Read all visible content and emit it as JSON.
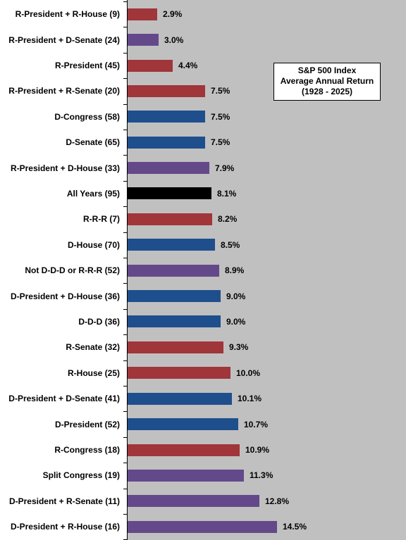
{
  "chart_data": {
    "type": "bar",
    "orientation": "horizontal",
    "title": [
      "S&P 500 Index",
      "Average Annual Return",
      "(1928 - 2025)"
    ],
    "categories": [
      "R-President + R-House (9)",
      "R-President + D-Senate (24)",
      "R-President (45)",
      "R-President + R-Senate (20)",
      "D-Congress (58)",
      "D-Senate (65)",
      "R-President + D-House (33)",
      "All Years (95)",
      "R-R-R (7)",
      "D-House (70)",
      "Not D-D-D or R-R-R (52)",
      "D-President + D-House (36)",
      "D-D-D (36)",
      "R-Senate (32)",
      "R-House (25)",
      "D-President + D-Senate (41)",
      "D-President (52)",
      "R-Congress (18)",
      "Split Congress (19)",
      "D-President + R-Senate (11)",
      "D-President + R-House (16)"
    ],
    "values": [
      2.9,
      3.0,
      4.4,
      7.5,
      7.5,
      7.5,
      7.9,
      8.1,
      8.2,
      8.5,
      8.9,
      9.0,
      9.0,
      9.3,
      10.0,
      10.1,
      10.7,
      10.9,
      11.3,
      12.8,
      14.5
    ],
    "value_labels": [
      "2.9%",
      "3.0%",
      "4.4%",
      "7.5%",
      "7.5%",
      "7.5%",
      "7.9%",
      "8.1%",
      "8.2%",
      "8.5%",
      "8.9%",
      "9.0%",
      "9.0%",
      "9.3%",
      "10.0%",
      "10.1%",
      "10.7%",
      "10.9%",
      "11.3%",
      "12.8%",
      "14.5%"
    ],
    "bar_colors": [
      "#a0353a",
      "#64498a",
      "#a0353a",
      "#a0353a",
      "#1f4e8c",
      "#1f4e8c",
      "#64498a",
      "#000000",
      "#a0353a",
      "#1f4e8c",
      "#64498a",
      "#1f4e8c",
      "#1f4e8c",
      "#a0353a",
      "#a0353a",
      "#1f4e8c",
      "#1f4e8c",
      "#a0353a",
      "#64498a",
      "#64498a",
      "#64498a"
    ],
    "xlim": [
      0,
      27
    ],
    "grid": false,
    "legend": "none",
    "colors": {
      "republican": "#a0353a",
      "democrat": "#1f4e8c",
      "mixed": "#64498a",
      "all": "#000000",
      "plot_background": "#c0c0c0"
    }
  }
}
